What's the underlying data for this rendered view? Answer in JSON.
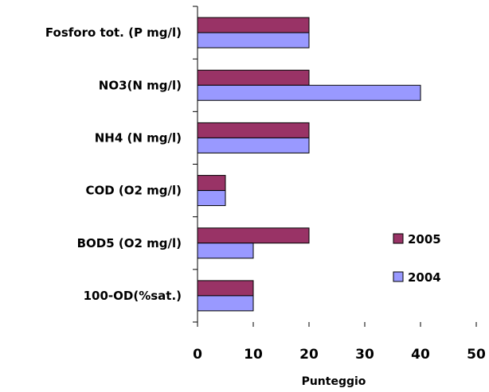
{
  "chart_data": {
    "type": "bar",
    "orientation": "horizontal",
    "categories": [
      "Fosforo tot. (P mg/l)",
      "NO3(N mg/l)",
      "NH4 (N mg/l)",
      "COD (O2 mg/l)",
      "BOD5 (O2 mg/l)",
      "100-OD(%sat.)"
    ],
    "series": [
      {
        "name": "2005",
        "color": "#993366",
        "values": [
          20,
          20,
          20,
          5,
          20,
          10
        ]
      },
      {
        "name": "2004",
        "color": "#9999FF",
        "values": [
          20,
          40,
          20,
          5,
          10,
          10
        ]
      }
    ],
    "xlabel": "Punteggio",
    "ylabel": "",
    "xlim": [
      0,
      50
    ],
    "xticks": [
      "0",
      "10",
      "20",
      "30",
      "40",
      "50"
    ],
    "grid": false,
    "legend_position": "right"
  }
}
